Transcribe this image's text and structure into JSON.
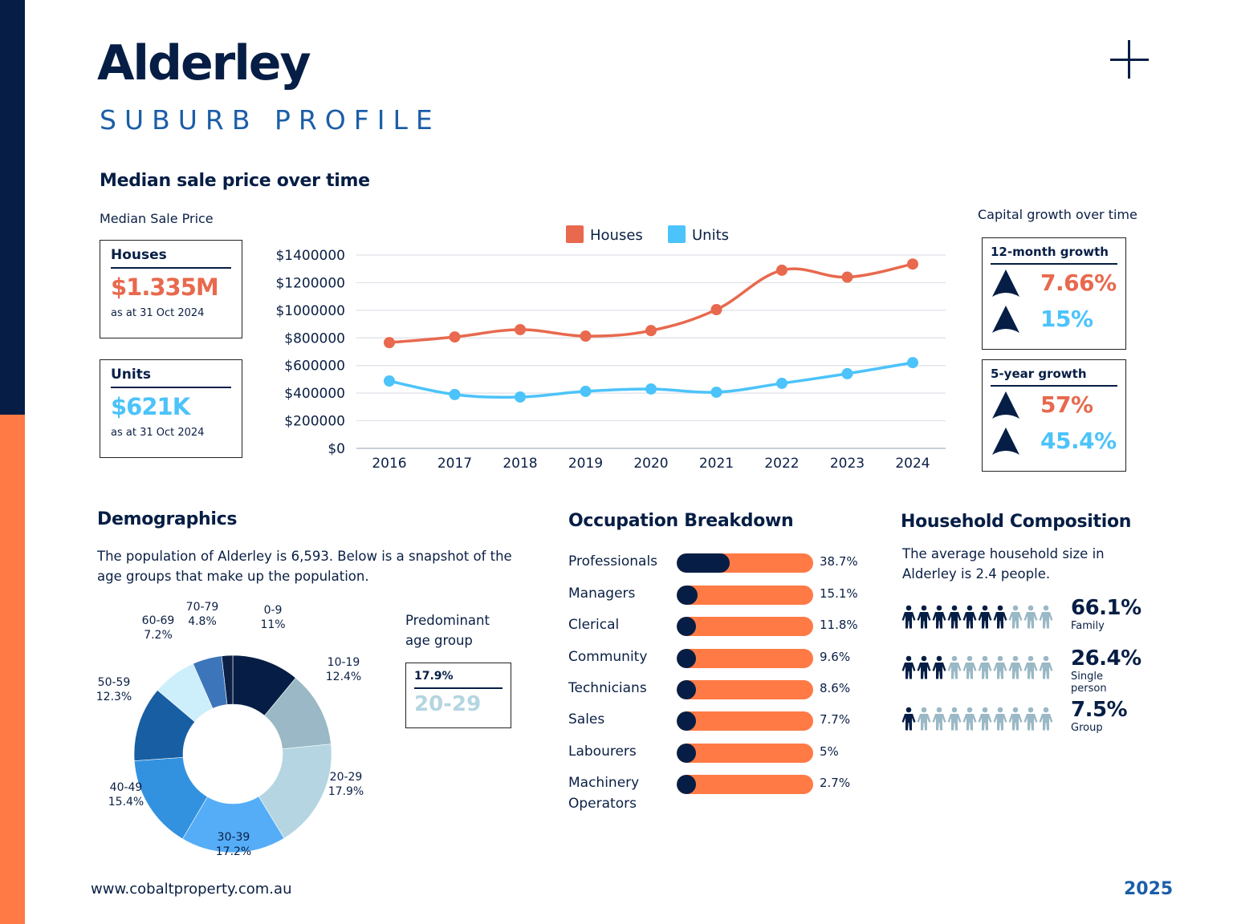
{
  "header": {
    "title": "Alderley",
    "subtitle": "SUBURB PROFILE",
    "plus_icon": "plus-icon"
  },
  "colors": {
    "navy": "#061e45",
    "orange": "#ff7a45",
    "houses": "#e8694e",
    "units": "#4cc3fa",
    "accent_blue": "#1c5ea8"
  },
  "median_section": {
    "heading": "Median sale price over time",
    "label": "Median Sale Price",
    "houses_box": {
      "title": "Houses",
      "value": "$1.335M",
      "date": "as at 31 Oct 2024"
    },
    "units_box": {
      "title": "Units",
      "value": "$621K",
      "date": "as at 31 Oct 2024"
    }
  },
  "growth_section": {
    "label": "Capital growth over time",
    "twelve_month": {
      "title": "12-month growth",
      "houses": "7.66%",
      "units": "15%"
    },
    "five_year": {
      "title": "5-year growth",
      "houses": "57%",
      "units": "45.4%"
    }
  },
  "chart_data": [
    {
      "type": "line",
      "title": "Median sale price over time",
      "xlabel": "",
      "ylabel": "",
      "x": [
        "2016",
        "2017",
        "2018",
        "2019",
        "2020",
        "2021",
        "2022",
        "2023",
        "2024"
      ],
      "series": [
        {
          "name": "Houses",
          "color": "#e8694e",
          "values": [
            766000,
            807000,
            860000,
            813000,
            853000,
            1005000,
            1290000,
            1240000,
            1335000
          ]
        },
        {
          "name": "Units",
          "color": "#4cc3fa",
          "values": [
            488000,
            390000,
            372000,
            413000,
            430000,
            407000,
            471000,
            541000,
            621000
          ]
        }
      ],
      "ylim": [
        0,
        1400000
      ],
      "yticks": [
        0,
        200000,
        400000,
        600000,
        800000,
        1000000,
        1200000,
        1400000
      ],
      "ytick_labels": [
        "$0",
        "$200000",
        "$400000",
        "$600000",
        "$800000",
        "$1000000",
        "$1200000",
        "$1400000"
      ],
      "grid": true,
      "legend": "top-center"
    },
    {
      "type": "pie",
      "title": "Age groups",
      "donut": true,
      "slices": [
        {
          "label": "0-9",
          "value": 11,
          "display": "11%",
          "color": "#061e45"
        },
        {
          "label": "10-19",
          "value": 12.4,
          "display": "12.4%",
          "color": "#9ab8c5"
        },
        {
          "label": "20-29",
          "value": 17.9,
          "display": "17.9%",
          "color": "#b4d5e1"
        },
        {
          "label": "30-39",
          "value": 17.2,
          "display": "17.2%",
          "color": "#55adf7"
        },
        {
          "label": "40-49",
          "value": 15.4,
          "display": "15.4%",
          "color": "#3292e0"
        },
        {
          "label": "50-59",
          "value": 12.3,
          "display": "12.3%",
          "color": "#175ea3"
        },
        {
          "label": "60-69",
          "value": 7.2,
          "display": "7.2%",
          "color": "#cdeefb"
        },
        {
          "label": "70-79",
          "value": 4.8,
          "display": "4.8%",
          "color": "#3d75bb"
        },
        {
          "label": "",
          "value": 1.8,
          "display": "",
          "color": "#0c1f45"
        }
      ]
    },
    {
      "type": "bar",
      "title": "Occupation Breakdown",
      "orientation": "horizontal",
      "categories": [
        "Professionals",
        "Managers",
        "Clerical",
        "Community",
        "Technicians",
        "Sales",
        "Labourers",
        "Machinery Operators"
      ],
      "values": [
        38.7,
        15.1,
        11.8,
        9.6,
        8.6,
        7.7,
        5,
        2.7
      ]
    }
  ],
  "demographics": {
    "heading": "Demographics",
    "text": "The population of Alderley is 6,593. Below is a snapshot of the age groups that make up the population.",
    "predominant_label": "Predominant age group",
    "predominant_pct": "17.9%",
    "predominant_group": "20-29"
  },
  "occupation": {
    "heading": "Occupation Breakdown",
    "items": [
      {
        "label": "Professionals",
        "value": "38.7%",
        "fraction": 0.387
      },
      {
        "label": "Managers",
        "value": "15.1%",
        "fraction": 0.151
      },
      {
        "label": "Clerical",
        "value": "11.8%",
        "fraction": 0.118
      },
      {
        "label": "Community",
        "value": "9.6%",
        "fraction": 0.096
      },
      {
        "label": "Technicians",
        "value": "8.6%",
        "fraction": 0.086
      },
      {
        "label": "Sales",
        "value": "7.7%",
        "fraction": 0.077
      },
      {
        "label": "Labourers",
        "value": "5%",
        "fraction": 0.05
      },
      {
        "label": "Machinery Operators",
        "value": "2.7%",
        "fraction": 0.027
      }
    ]
  },
  "household": {
    "heading": "Household Composition",
    "text": "The average household size in Alderley is 2.4 people.",
    "rows": [
      {
        "pct": "66.1%",
        "label": "Family",
        "filled": 7,
        "total": 10
      },
      {
        "pct": "26.4%",
        "label": "Single person",
        "filled": 3,
        "total": 10
      },
      {
        "pct": "7.5%",
        "label": "Group",
        "filled": 1,
        "total": 10
      }
    ],
    "filled_color": "#061e45",
    "empty_color": "#9ab8c5"
  },
  "footer": {
    "url": "www.cobaltproperty.com.au",
    "year": "2025"
  }
}
